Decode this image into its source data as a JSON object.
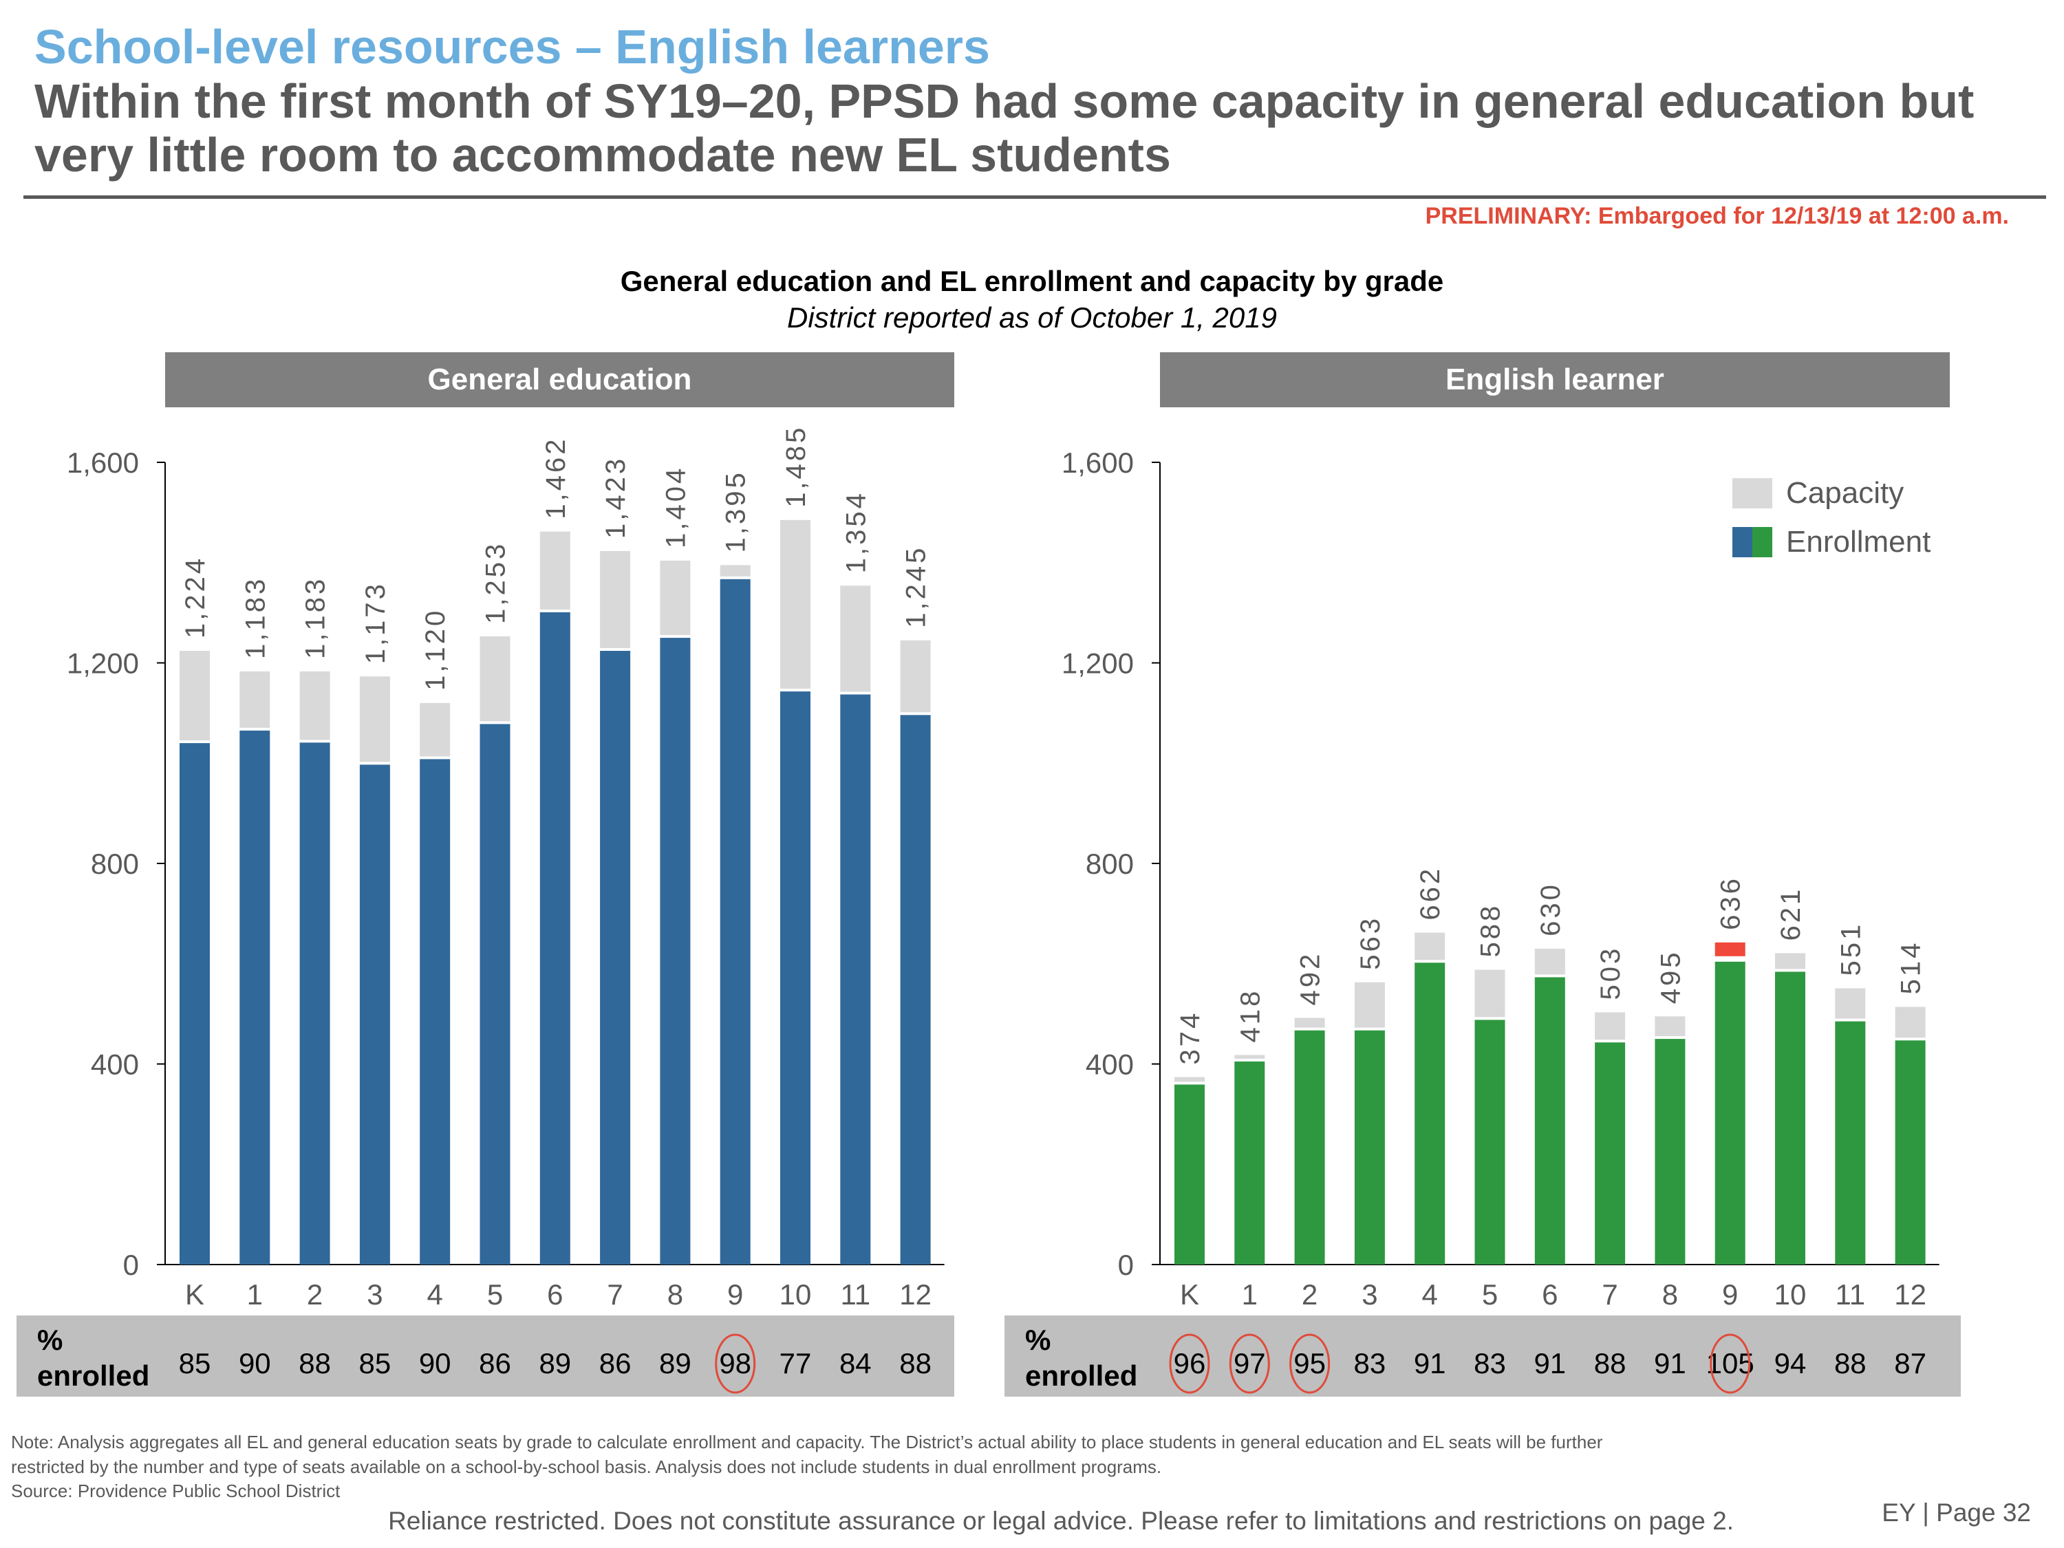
{
  "header": {
    "kicker": "School-level resources – English learners",
    "headline": "Within the first month of SY19–20, PPSD had some capacity in general education but very little room to accommodate new EL students",
    "preliminary": "PRELIMINARY: Embargoed for 12/13/19 at 12:00 a.m."
  },
  "colors": {
    "gen_ed_enrollment": "#31689a",
    "el_enrollment": "#2e9840",
    "capacity": "#d9d9d9",
    "over_capacity": "#f0483a",
    "circle": "#e04b3a",
    "band": "#7f7f7f",
    "pct_band": "#bfbfbf"
  },
  "chart_data": [
    {
      "type": "bar",
      "title": "General education and EL enrollment and capacity by grade",
      "subtitle": "District reported as of October 1, 2019",
      "panel": "General education",
      "categories": [
        "K",
        "1",
        "2",
        "3",
        "4",
        "5",
        "6",
        "7",
        "8",
        "9",
        "10",
        "11",
        "12"
      ],
      "series": [
        {
          "name": "Capacity",
          "values": [
            1224,
            1183,
            1183,
            1173,
            1120,
            1253,
            1462,
            1423,
            1404,
            1395,
            1485,
            1354,
            1245
          ]
        },
        {
          "name": "Enrollment",
          "values": [
            1040,
            1065,
            1041,
            997,
            1008,
            1078,
            1301,
            1224,
            1250,
            1367,
            1143,
            1137,
            1096
          ]
        }
      ],
      "capacity_labels": [
        "1,224",
        "1,183",
        "1,183",
        "1,173",
        "1,120",
        "1,253",
        "1,462",
        "1,423",
        "1,404",
        "1,395",
        "1,485",
        "1,354",
        "1,245"
      ],
      "pct_enrolled": [
        "85",
        "90",
        "88",
        "85",
        "90",
        "86",
        "89",
        "86",
        "89",
        "98",
        "77",
        "84",
        "88"
      ],
      "pct_circled": [
        false,
        false,
        false,
        false,
        false,
        false,
        false,
        false,
        false,
        true,
        false,
        false,
        false
      ],
      "over_capacity": [
        false,
        false,
        false,
        false,
        false,
        false,
        false,
        false,
        false,
        false,
        false,
        false,
        false
      ],
      "yticks": [
        "0",
        "400",
        "800",
        "1,200",
        "1,600"
      ],
      "ytick_values": [
        0,
        400,
        800,
        1200,
        1600
      ],
      "ylim": [
        0,
        1600
      ],
      "pct_row_label": [
        "%",
        "enrolled"
      ]
    },
    {
      "type": "bar",
      "panel": "English learner",
      "categories": [
        "K",
        "1",
        "2",
        "3",
        "4",
        "5",
        "6",
        "7",
        "8",
        "9",
        "10",
        "11",
        "12"
      ],
      "series": [
        {
          "name": "Capacity",
          "values": [
            374,
            418,
            492,
            563,
            662,
            588,
            630,
            503,
            495,
            636,
            621,
            551,
            514
          ]
        },
        {
          "name": "Enrollment",
          "values": [
            359,
            405,
            467,
            467,
            602,
            488,
            573,
            443,
            450,
            668,
            584,
            485,
            447
          ]
        }
      ],
      "capacity_labels": [
        "374",
        "418",
        "492",
        "563",
        "662",
        "588",
        "630",
        "503",
        "495",
        "636",
        "621",
        "551",
        "514"
      ],
      "pct_enrolled": [
        "96",
        "97",
        "95",
        "83",
        "91",
        "83",
        "91",
        "88",
        "91",
        "105",
        "94",
        "88",
        "87"
      ],
      "pct_circled": [
        true,
        true,
        true,
        false,
        false,
        false,
        false,
        false,
        false,
        true,
        false,
        false,
        false
      ],
      "over_capacity": [
        false,
        false,
        false,
        false,
        false,
        false,
        false,
        false,
        false,
        true,
        false,
        false,
        false
      ],
      "yticks": [
        "0",
        "400",
        "800",
        "1,200",
        "1,600"
      ],
      "ytick_values": [
        0,
        400,
        800,
        1200,
        1600
      ],
      "ylim": [
        0,
        1600
      ],
      "legend": [
        "Capacity",
        "Enrollment"
      ],
      "legend_position": "top-right",
      "pct_row_label": [
        "%",
        "enrolled"
      ]
    }
  ],
  "footer": {
    "note": "Note: Analysis aggregates all EL and general education seats by grade to calculate enrollment and capacity. The District’s actual ability to place students in general education and EL seats will be further restricted by the number and type of seats available on a school-by-school basis. Analysis does not include students in dual enrollment programs.",
    "source": "Source: Providence Public School District",
    "disclaimer": "Reliance restricted. Does not constitute assurance or legal advice. Please refer to limitations and restrictions on page 2.",
    "page": "EY | Page 32"
  }
}
